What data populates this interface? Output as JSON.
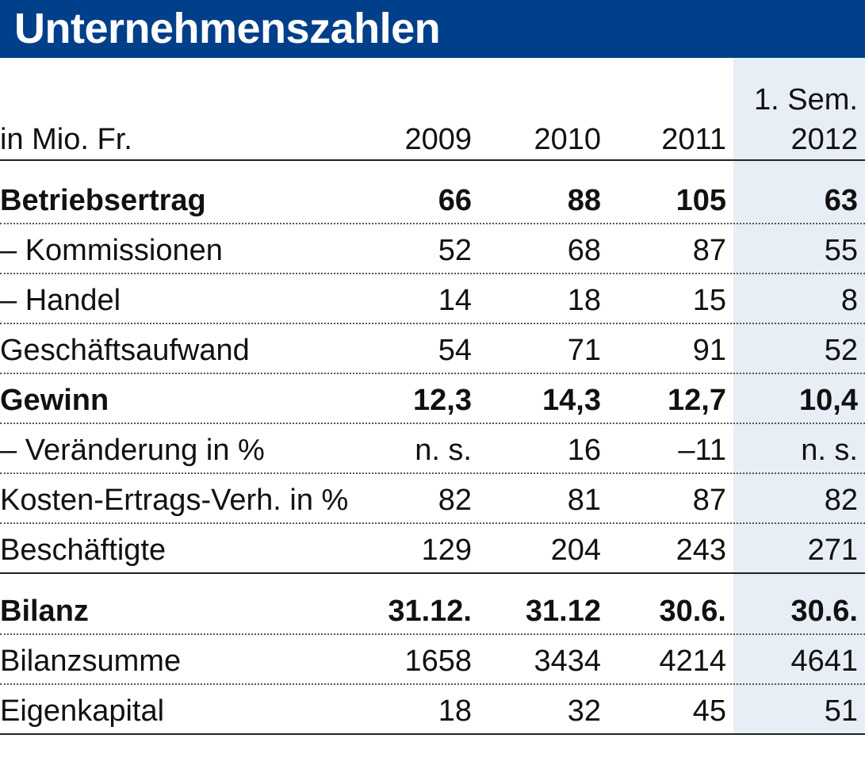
{
  "title": "Unternehmenszahlen",
  "chart_data": {
    "type": "table",
    "header": {
      "label": "in Mio. Fr.",
      "columns": [
        "2009",
        "2010",
        "2011",
        "1. Sem. 2012"
      ],
      "col3_line1": "1. Sem.",
      "col3_line2": "2012"
    },
    "rows": [
      {
        "label": "Betriebsertrag",
        "values": [
          "66",
          "88",
          "105",
          "63"
        ],
        "bold": true
      },
      {
        "label": "– Kommissionen",
        "values": [
          "52",
          "68",
          "87",
          "55"
        ],
        "bold": false
      },
      {
        "label": "– Handel",
        "values": [
          "14",
          "18",
          "15",
          "8"
        ],
        "bold": false
      },
      {
        "label": "Geschäftsaufwand",
        "values": [
          "54",
          "71",
          "91",
          "52"
        ],
        "bold": false
      },
      {
        "label": "Gewinn",
        "values": [
          "12,3",
          "14,3",
          "12,7",
          "10,4"
        ],
        "bold": true
      },
      {
        "label": "– Veränderung in %",
        "values": [
          "n. s.",
          "16",
          "–11",
          "n. s."
        ],
        "bold": false
      },
      {
        "label": "Kosten-Ertrags-Verh. in %",
        "values": [
          "82",
          "81",
          "87",
          "82"
        ],
        "bold": false
      },
      {
        "label": "Beschäftigte",
        "values": [
          "129",
          "204",
          "243",
          "271"
        ],
        "bold": false
      },
      {
        "label": "Bilanz",
        "values": [
          "31.12.",
          "31.12",
          "30.6.",
          "30.6."
        ],
        "bold": true
      },
      {
        "label": "Bilanzsumme",
        "values": [
          "1658",
          "3434",
          "4214",
          "4641"
        ],
        "bold": false
      },
      {
        "label": "Eigenkapital",
        "values": [
          "18",
          "32",
          "45",
          "51"
        ],
        "bold": false
      }
    ]
  },
  "colors": {
    "title_bg": "#003f8a",
    "title_fg": "#ffffff",
    "highlight_column": "#e8eef6"
  }
}
